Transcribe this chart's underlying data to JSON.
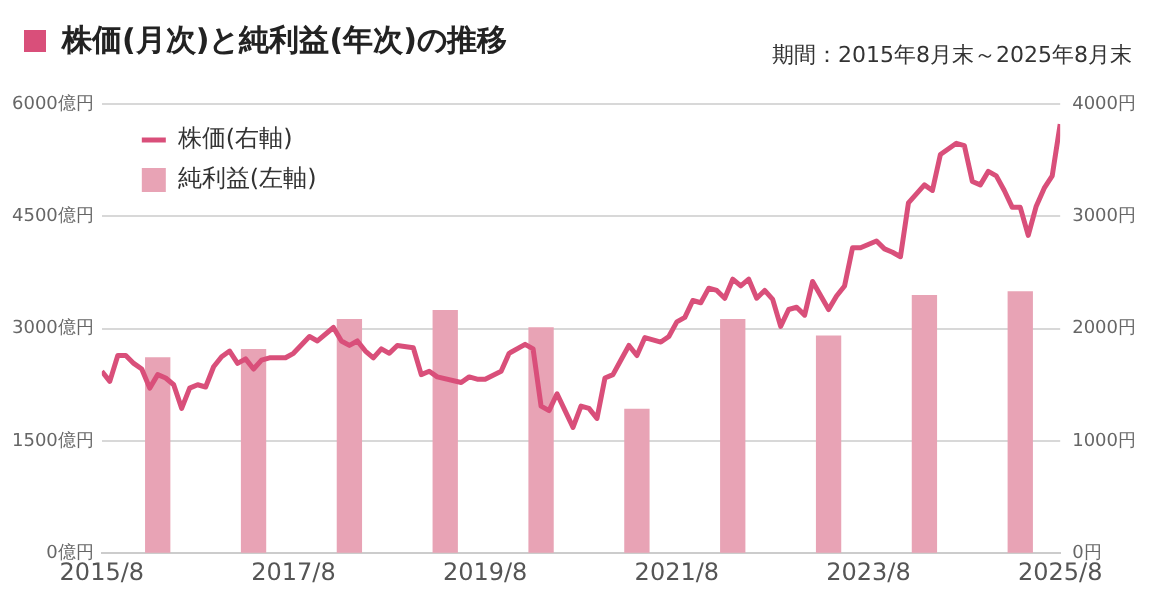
{
  "chart_data": {
    "type": "bar",
    "title": "株価(月次)と純利益(年次)の推移",
    "subtitle": "期間：2015年8月末～2025年8月末",
    "xlim": [
      "2015-08",
      "2025-08"
    ],
    "xticks": [
      {
        "value": "2015-08",
        "label": "2015/8"
      },
      {
        "value": "2017-08",
        "label": "2017/8"
      },
      {
        "value": "2019-08",
        "label": "2019/8"
      },
      {
        "value": "2021-08",
        "label": "2021/8"
      },
      {
        "value": "2023-08",
        "label": "2023/8"
      },
      {
        "value": "2025-08",
        "label": "2025/8"
      }
    ],
    "ylim": [
      0,
      6000
    ],
    "yticks": [
      {
        "value": 0,
        "label": "0億円"
      },
      {
        "value": 1500,
        "label": "1500億円"
      },
      {
        "value": 3000,
        "label": "3000億円"
      },
      {
        "value": 4500,
        "label": "4500億円"
      },
      {
        "value": 6000,
        "label": "6000億円"
      }
    ],
    "y2lim": [
      0,
      4000
    ],
    "y2ticks": [
      {
        "value": 0,
        "label": "0円"
      },
      {
        "value": 1000,
        "label": "1000円"
      },
      {
        "value": 2000,
        "label": "2000円"
      },
      {
        "value": 3000,
        "label": "3000円"
      },
      {
        "value": 4000,
        "label": "4000円"
      }
    ],
    "grid": "y",
    "legend": "top left",
    "series": [
      {
        "name": "株価(右軸)",
        "type": "line",
        "axis": "y2",
        "color": "#d94f7a",
        "marker": "none",
        "line_style": "solid",
        "x": [
          "2015-08",
          "2015-09",
          "2015-10",
          "2015-11",
          "2015-12",
          "2016-01",
          "2016-02",
          "2016-03",
          "2016-04",
          "2016-05",
          "2016-06",
          "2016-07",
          "2016-08",
          "2016-09",
          "2016-10",
          "2016-11",
          "2016-12",
          "2017-01",
          "2017-02",
          "2017-03",
          "2017-04",
          "2017-05",
          "2017-07",
          "2017-08",
          "2017-10",
          "2017-11",
          "2018-01",
          "2018-02",
          "2018-03",
          "2018-04",
          "2018-05",
          "2018-06",
          "2018-07",
          "2018-08",
          "2018-09",
          "2018-11",
          "2018-12",
          "2019-01",
          "2019-02",
          "2019-05",
          "2019-06",
          "2019-07",
          "2019-08",
          "2019-10",
          "2019-11",
          "2020-01",
          "2020-02",
          "2020-03",
          "2020-04",
          "2020-05",
          "2020-06",
          "2020-07",
          "2020-08",
          "2020-09",
          "2020-10",
          "2020-11",
          "2020-12",
          "2021-01",
          "2021-02",
          "2021-03",
          "2021-04",
          "2021-06",
          "2021-07",
          "2021-08",
          "2021-09",
          "2021-10",
          "2021-11",
          "2021-12",
          "2022-01",
          "2022-02",
          "2022-03",
          "2022-04",
          "2022-05",
          "2022-06",
          "2022-07",
          "2022-08",
          "2022-09",
          "2022-10",
          "2022-11",
          "2022-12",
          "2023-01",
          "2023-03",
          "2023-04",
          "2023-05",
          "2023-06",
          "2023-07",
          "2023-09",
          "2023-10",
          "2023-11",
          "2023-12",
          "2024-01",
          "2024-03",
          "2024-04",
          "2024-05",
          "2024-07",
          "2024-08",
          "2024-09",
          "2024-10",
          "2024-11",
          "2024-12",
          "2025-01",
          "2025-02",
          "2025-03",
          "2025-04",
          "2025-05",
          "2025-06",
          "2025-07",
          "2025-08"
        ],
        "values": [
          1620,
          1530,
          1760,
          1760,
          1690,
          1640,
          1470,
          1590,
          1560,
          1500,
          1290,
          1470,
          1500,
          1480,
          1660,
          1750,
          1800,
          1690,
          1730,
          1640,
          1720,
          1740,
          1740,
          1780,
          1930,
          1890,
          2010,
          1890,
          1850,
          1890,
          1800,
          1740,
          1820,
          1780,
          1850,
          1830,
          1590,
          1620,
          1570,
          1520,
          1570,
          1550,
          1550,
          1620,
          1780,
          1860,
          1820,
          1310,
          1270,
          1420,
          1270,
          1120,
          1310,
          1290,
          1200,
          1560,
          1590,
          1720,
          1850,
          1760,
          1920,
          1880,
          1930,
          2060,
          2100,
          2250,
          2230,
          2360,
          2340,
          2270,
          2440,
          2380,
          2440,
          2270,
          2340,
          2260,
          2020,
          2170,
          2190,
          2120,
          2420,
          2170,
          2290,
          2380,
          2720,
          2720,
          2780,
          2710,
          2680,
          2640,
          3120,
          3280,
          3230,
          3550,
          3650,
          3630,
          3310,
          3280,
          3400,
          3360,
          3230,
          3080,
          3080,
          2830,
          3090,
          3250,
          3360,
          3820
        ]
      },
      {
        "name": "純利益(左軸)",
        "color": "#e8a3b5",
        "x": [
          "2016-03",
          "2017-03",
          "2018-03",
          "2019-03",
          "2020-03",
          "2021-03",
          "2022-03",
          "2023-03",
          "2024-03",
          "2025-03"
        ],
        "values": [
          2610,
          2720,
          3120,
          3240,
          3010,
          1920,
          3120,
          2900,
          3440,
          3490
        ]
      }
    ]
  }
}
